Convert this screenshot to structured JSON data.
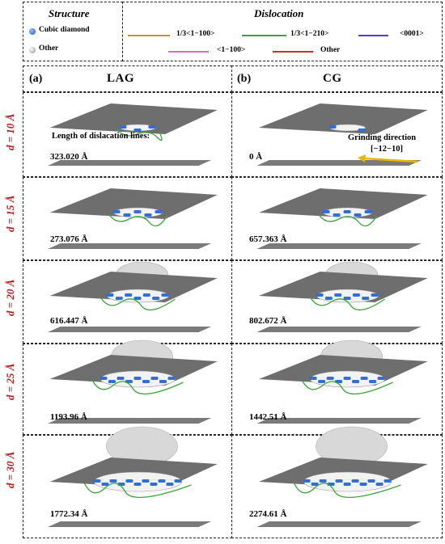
{
  "legend": {
    "structure_title": "Structure",
    "structure_items": [
      {
        "label": "Cubic diamond",
        "color": "#2f6fd6"
      },
      {
        "label": "Other",
        "color": "#c9c9c9"
      }
    ],
    "dislocation_title": "Dislocation",
    "dislocation_items": [
      {
        "label": "1/3<1−100>",
        "color": "#c8912e"
      },
      {
        "label": "1/3<1−210>",
        "color": "#3aa53a"
      },
      {
        "label": "<0001>",
        "color": "#4a3fd0"
      },
      {
        "label": "<1−100>",
        "color": "#d36ad3"
      },
      {
        "label": "Other",
        "color": "#c0392b"
      }
    ]
  },
  "panels": {
    "a": {
      "label": "(a)",
      "title": "LAG"
    },
    "b": {
      "label": "(b)",
      "title": "CG"
    }
  },
  "annotations": {
    "length_label": "Length of dislacation lines:",
    "grinding_direction": "Grinding direction",
    "grinding_vector": "[−12−10]",
    "arrow_color": "#e8b800"
  },
  "rows": [
    {
      "label": "d = 10 Å",
      "lag": "323.020 Å",
      "cg": "0 Å"
    },
    {
      "label": "d = 15 Å",
      "lag": "273.076 Å",
      "cg": "657.363 Å"
    },
    {
      "label": "d = 20 Å",
      "lag": "616.447 Å",
      "cg": "802.672 Å"
    },
    {
      "label": "d = 25 Å",
      "lag": "1193.96 Å",
      "cg": "1442.51 Å"
    },
    {
      "label": "d = 30 Å",
      "lag": "1772.34 Å",
      "cg": "2274.61 Å"
    }
  ],
  "colors": {
    "row_label": "#b01b1b",
    "plane": "#6e6e6e"
  }
}
